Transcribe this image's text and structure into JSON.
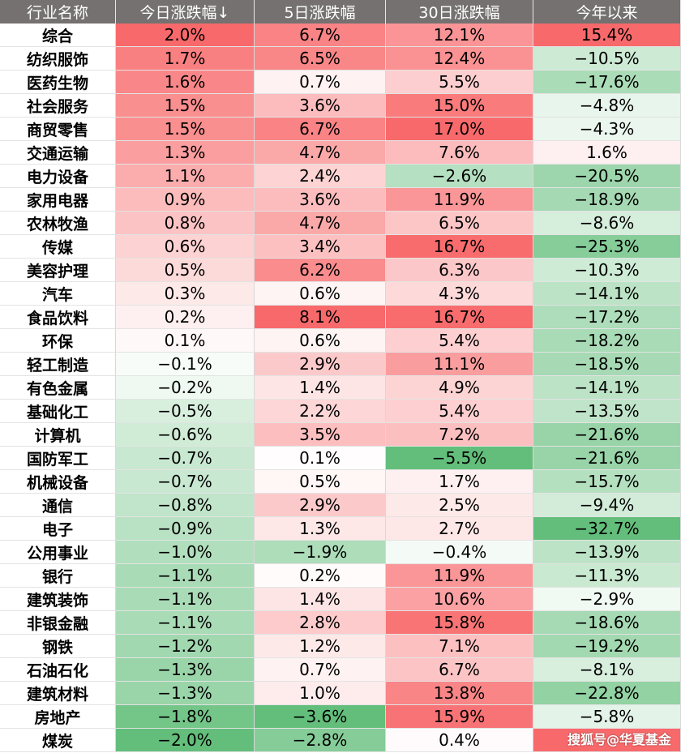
{
  "chart_data": {
    "type": "table",
    "columns": [
      "行业名称",
      "今日涨跌幅↓",
      "5日涨跌幅",
      "30日涨跌幅",
      "今年以来"
    ],
    "rows": [
      [
        "综合",
        "2.0%",
        "6.7%",
        "12.1%",
        "15.4%"
      ],
      [
        "纺织服饰",
        "1.7%",
        "6.5%",
        "12.4%",
        "−10.5%"
      ],
      [
        "医药生物",
        "1.6%",
        "0.7%",
        "5.5%",
        "−17.6%"
      ],
      [
        "社会服务",
        "1.5%",
        "3.6%",
        "15.0%",
        "−4.8%"
      ],
      [
        "商贸零售",
        "1.5%",
        "6.7%",
        "17.0%",
        "−4.3%"
      ],
      [
        "交通运输",
        "1.3%",
        "4.7%",
        "7.6%",
        "1.6%"
      ],
      [
        "电力设备",
        "1.1%",
        "2.4%",
        "−2.6%",
        "−20.5%"
      ],
      [
        "家用电器",
        "0.9%",
        "3.6%",
        "11.9%",
        "−18.9%"
      ],
      [
        "农林牧渔",
        "0.8%",
        "4.7%",
        "6.5%",
        "−8.6%"
      ],
      [
        "传媒",
        "0.6%",
        "3.4%",
        "16.7%",
        "−25.3%"
      ],
      [
        "美容护理",
        "0.5%",
        "6.2%",
        "6.3%",
        "−10.3%"
      ],
      [
        "汽车",
        "0.3%",
        "0.6%",
        "4.3%",
        "−14.1%"
      ],
      [
        "食品饮料",
        "0.2%",
        "8.1%",
        "16.7%",
        "−17.2%"
      ],
      [
        "环保",
        "0.1%",
        "0.6%",
        "5.4%",
        "−18.2%"
      ],
      [
        "轻工制造",
        "−0.1%",
        "2.9%",
        "11.1%",
        "−18.5%"
      ],
      [
        "有色金属",
        "−0.2%",
        "1.4%",
        "4.9%",
        "−14.1%"
      ],
      [
        "基础化工",
        "−0.5%",
        "2.2%",
        "5.4%",
        "−13.5%"
      ],
      [
        "计算机",
        "−0.6%",
        "3.5%",
        "7.2%",
        "−21.6%"
      ],
      [
        "国防军工",
        "−0.7%",
        "0.1%",
        "−5.5%",
        "−21.6%"
      ],
      [
        "机械设备",
        "−0.7%",
        "0.5%",
        "1.7%",
        "−15.7%"
      ],
      [
        "通信",
        "−0.8%",
        "2.9%",
        "2.5%",
        "−9.4%"
      ],
      [
        "电子",
        "−0.9%",
        "1.3%",
        "2.7%",
        "−32.7%"
      ],
      [
        "公用事业",
        "−1.0%",
        "−1.9%",
        "−0.4%",
        "−13.9%"
      ],
      [
        "银行",
        "−1.1%",
        "0.2%",
        "11.9%",
        "−11.3%"
      ],
      [
        "建筑装饰",
        "−1.1%",
        "1.4%",
        "10.6%",
        "−2.9%"
      ],
      [
        "非银金融",
        "−1.1%",
        "2.8%",
        "15.8%",
        "−18.6%"
      ],
      [
        "钢铁",
        "−1.2%",
        "1.2%",
        "7.1%",
        "−19.2%"
      ],
      [
        "石油石化",
        "−1.3%",
        "0.7%",
        "6.7%",
        "−8.1%"
      ],
      [
        "建筑材料",
        "−1.3%",
        "1.0%",
        "13.8%",
        "−22.8%"
      ],
      [
        "房地产",
        "−1.8%",
        "−3.6%",
        "15.9%",
        "−5.8%"
      ],
      [
        "煤炭",
        "−2.0%",
        "−2.8%",
        "0.4%",
        ""
      ]
    ],
    "scale": {
      "positive": "#f8696b",
      "negative": "#63be7b",
      "mid": "#ffffff"
    }
  },
  "watermark": "搜狐号@华夏基金"
}
